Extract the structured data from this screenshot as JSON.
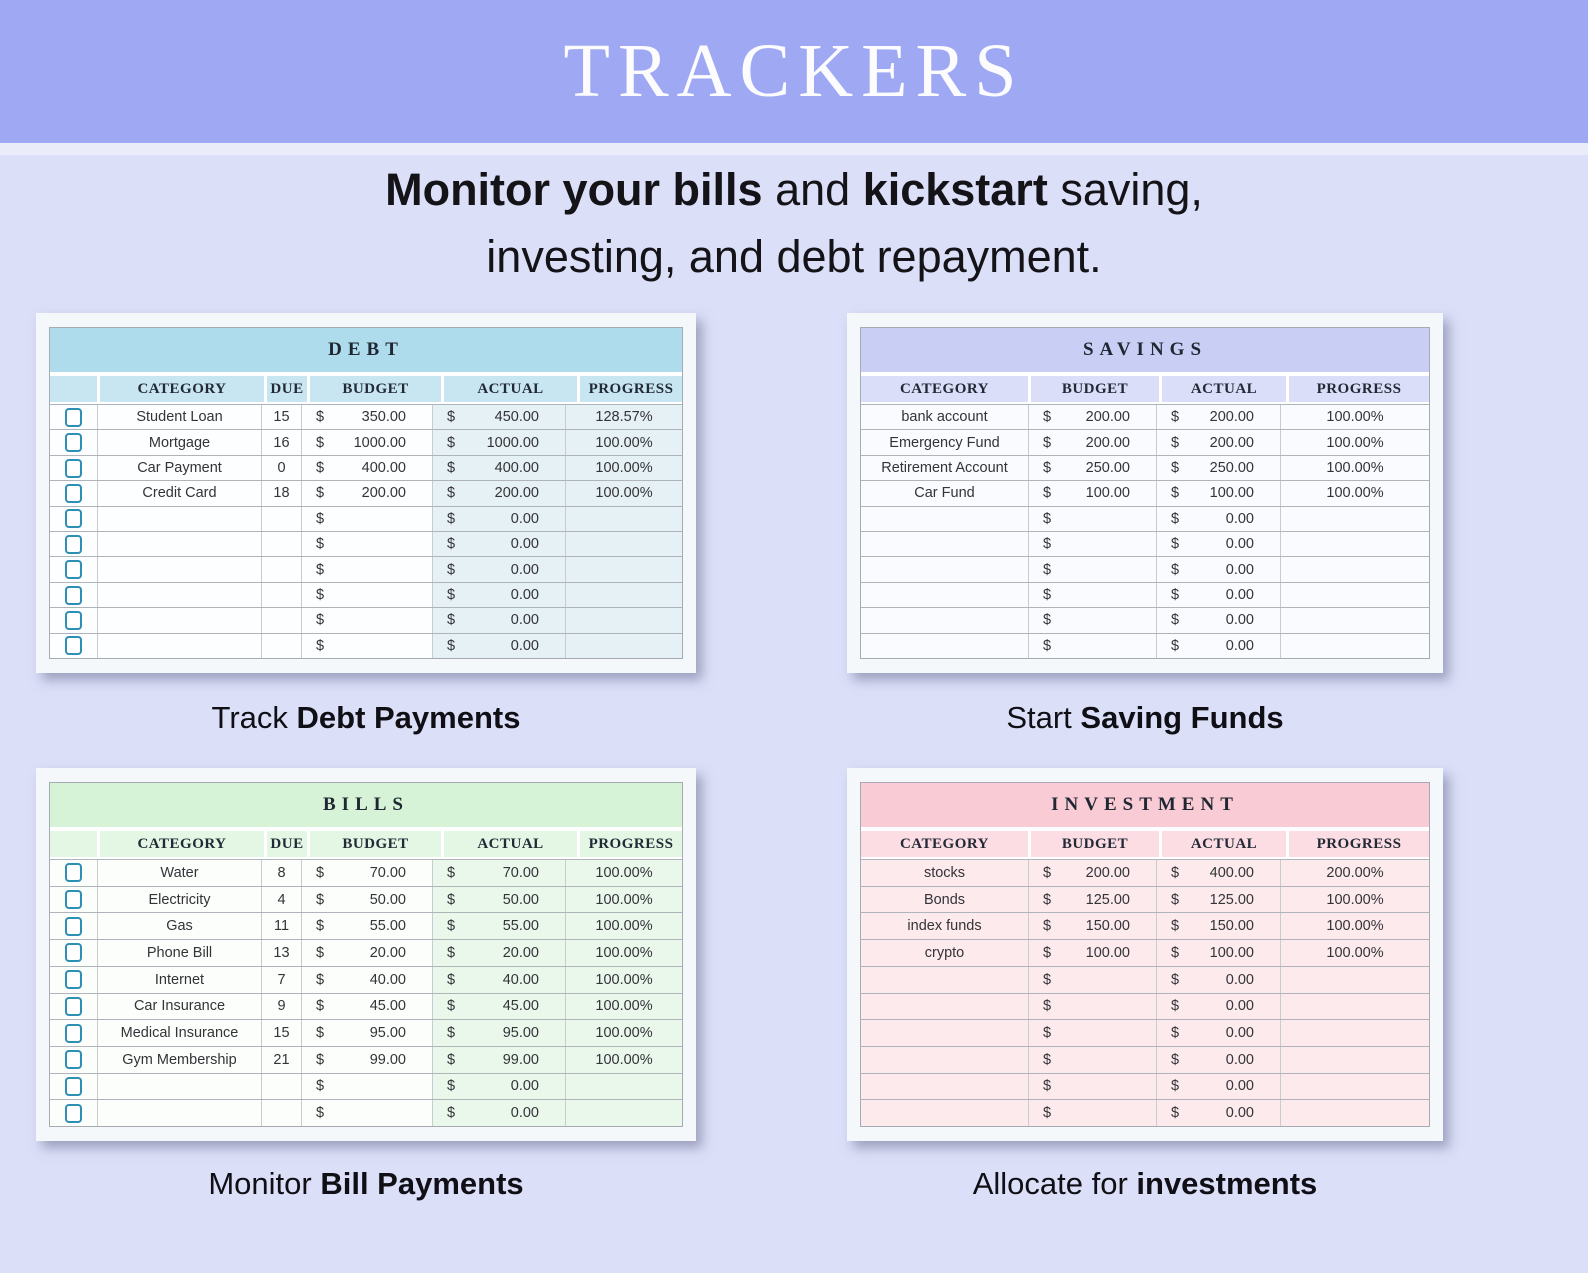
{
  "header": {
    "title": "TRACKERS",
    "bg": "#9FA9F3"
  },
  "subtitle": {
    "lines": [
      [
        {
          "t": "Monitor your bills",
          "b": true
        },
        {
          "t": " and ",
          "b": false
        },
        {
          "t": "kickstart",
          "b": true
        },
        {
          "t": " saving,",
          "b": false
        }
      ],
      [
        {
          "t": "investing, and debt repayment.",
          "b": false
        }
      ]
    ]
  },
  "currency": "$",
  "tables": [
    {
      "id": "debt",
      "title": "DEBT",
      "caption": [
        {
          "t": "Track ",
          "b": false
        },
        {
          "t": "Debt Payments",
          "b": true
        }
      ],
      "columns": [
        "CATEGORY",
        "DUE",
        "BUDGET",
        "ACTUAL",
        "PROGRESS"
      ],
      "has_row_checkboxes": true,
      "colors": {
        "title_bg": "#AEDCEC",
        "header_bg": "#C8E6F1",
        "row_bg": "#FDFEFF",
        "accent_bg": "#E5F1F4",
        "checkbox": "#2E8FB5"
      },
      "rows": [
        {
          "category": "Student Loan",
          "due": "15",
          "budget": "350.00",
          "actual": "450.00",
          "progress": "128.57%"
        },
        {
          "category": "Mortgage",
          "due": "16",
          "budget": "1000.00",
          "actual": "1000.00",
          "progress": "100.00%"
        },
        {
          "category": "Car Payment",
          "due": "0",
          "budget": "400.00",
          "actual": "400.00",
          "progress": "100.00%"
        },
        {
          "category": "Credit Card",
          "due": "18",
          "budget": "200.00",
          "actual": "200.00",
          "progress": "100.00%"
        },
        {
          "category": "",
          "due": "",
          "budget": "",
          "actual": "0.00",
          "progress": ""
        },
        {
          "category": "",
          "due": "",
          "budget": "",
          "actual": "0.00",
          "progress": ""
        },
        {
          "category": "",
          "due": "",
          "budget": "",
          "actual": "0.00",
          "progress": ""
        },
        {
          "category": "",
          "due": "",
          "budget": "",
          "actual": "0.00",
          "progress": ""
        },
        {
          "category": "",
          "due": "",
          "budget": "",
          "actual": "0.00",
          "progress": ""
        },
        {
          "category": "",
          "due": "",
          "budget": "",
          "actual": "0.00",
          "progress": ""
        }
      ]
    },
    {
      "id": "savings",
      "title": "SAVINGS",
      "caption": [
        {
          "t": "Start ",
          "b": false
        },
        {
          "t": "Saving Funds",
          "b": true
        }
      ],
      "columns": [
        "CATEGORY",
        "BUDGET",
        "ACTUAL",
        "PROGRESS"
      ],
      "has_row_checkboxes": false,
      "colors": {
        "title_bg": "#C9CEF4",
        "header_bg": "#DBDEF8",
        "row_bg": "#FAFBFE",
        "accent_bg": "#F7F8FD",
        "checkbox": "#2E8FB5"
      },
      "rows": [
        {
          "category": "bank account",
          "budget": "200.00",
          "actual": "200.00",
          "progress": "100.00%"
        },
        {
          "category": "Emergency Fund",
          "budget": "200.00",
          "actual": "200.00",
          "progress": "100.00%"
        },
        {
          "category": "Retirement Account",
          "budget": "250.00",
          "actual": "250.00",
          "progress": "100.00%"
        },
        {
          "category": "Car Fund",
          "budget": "100.00",
          "actual": "100.00",
          "progress": "100.00%"
        },
        {
          "category": "",
          "budget": "",
          "actual": "0.00",
          "progress": ""
        },
        {
          "category": "",
          "budget": "",
          "actual": "0.00",
          "progress": ""
        },
        {
          "category": "",
          "budget": "",
          "actual": "0.00",
          "progress": ""
        },
        {
          "category": "",
          "budget": "",
          "actual": "0.00",
          "progress": ""
        },
        {
          "category": "",
          "budget": "",
          "actual": "0.00",
          "progress": ""
        },
        {
          "category": "",
          "budget": "",
          "actual": "0.00",
          "progress": ""
        }
      ]
    },
    {
      "id": "bills",
      "title": "BILLS",
      "caption": [
        {
          "t": "Monitor ",
          "b": false
        },
        {
          "t": "Bill Payments",
          "b": true
        }
      ],
      "columns": [
        "CATEGORY",
        "DUE",
        "BUDGET",
        "ACTUAL",
        "PROGRESS"
      ],
      "has_row_checkboxes": true,
      "colors": {
        "title_bg": "#D6F2D7",
        "header_bg": "#E3F7E4",
        "row_bg": "#FCFEFC",
        "accent_bg": "#EAF8EC",
        "checkbox": "#2E8FB5"
      },
      "rows": [
        {
          "category": "Water",
          "due": "8",
          "budget": "70.00",
          "actual": "70.00",
          "progress": "100.00%"
        },
        {
          "category": "Electricity",
          "due": "4",
          "budget": "50.00",
          "actual": "50.00",
          "progress": "100.00%"
        },
        {
          "category": "Gas",
          "due": "11",
          "budget": "55.00",
          "actual": "55.00",
          "progress": "100.00%"
        },
        {
          "category": "Phone Bill",
          "due": "13",
          "budget": "20.00",
          "actual": "20.00",
          "progress": "100.00%"
        },
        {
          "category": "Internet",
          "due": "7",
          "budget": "40.00",
          "actual": "40.00",
          "progress": "100.00%"
        },
        {
          "category": "Car Insurance",
          "due": "9",
          "budget": "45.00",
          "actual": "45.00",
          "progress": "100.00%"
        },
        {
          "category": "Medical Insurance",
          "due": "15",
          "budget": "95.00",
          "actual": "95.00",
          "progress": "100.00%"
        },
        {
          "category": "Gym Membership",
          "due": "21",
          "budget": "99.00",
          "actual": "99.00",
          "progress": "100.00%"
        },
        {
          "category": "",
          "due": "",
          "budget": "",
          "actual": "0.00",
          "progress": ""
        },
        {
          "category": "",
          "due": "",
          "budget": "",
          "actual": "0.00",
          "progress": ""
        }
      ]
    },
    {
      "id": "investment",
      "title": "INVESTMENT",
      "caption": [
        {
          "t": "Allocate for ",
          "b": false
        },
        {
          "t": "investments",
          "b": true
        }
      ],
      "columns": [
        "CATEGORY",
        "BUDGET",
        "ACTUAL",
        "PROGRESS"
      ],
      "has_row_checkboxes": false,
      "colors": {
        "title_bg": "#F8CBD5",
        "header_bg": "#FBDDE3",
        "row_bg": "#FCEAEC",
        "accent_bg": "#FBE5E8",
        "checkbox": "#2E8FB5"
      },
      "rows": [
        {
          "category": "stocks",
          "budget": "200.00",
          "actual": "400.00",
          "progress": "200.00%"
        },
        {
          "category": "Bonds",
          "budget": "125.00",
          "actual": "125.00",
          "progress": "100.00%"
        },
        {
          "category": "index funds",
          "budget": "150.00",
          "actual": "150.00",
          "progress": "100.00%"
        },
        {
          "category": "crypto",
          "budget": "100.00",
          "actual": "100.00",
          "progress": "100.00%"
        },
        {
          "category": "",
          "budget": "",
          "actual": "0.00",
          "progress": ""
        },
        {
          "category": "",
          "budget": "",
          "actual": "0.00",
          "progress": ""
        },
        {
          "category": "",
          "budget": "",
          "actual": "0.00",
          "progress": ""
        },
        {
          "category": "",
          "budget": "",
          "actual": "0.00",
          "progress": ""
        },
        {
          "category": "",
          "budget": "",
          "actual": "0.00",
          "progress": ""
        },
        {
          "category": "",
          "budget": "",
          "actual": "0.00",
          "progress": ""
        }
      ]
    }
  ]
}
